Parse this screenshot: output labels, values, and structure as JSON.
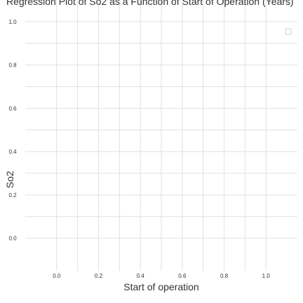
{
  "chart_data": {
    "type": "scatter",
    "title": "Regression Plot of So2 as a Function of Start of Operation (Years)",
    "xlabel": "Start of operation",
    "ylabel": "So2",
    "xlim": [
      -0.15,
      1.15
    ],
    "ylim": [
      -0.15,
      1.1
    ],
    "x_ticks": [
      0.0,
      0.2,
      0.4,
      0.6,
      0.8,
      1.0
    ],
    "x_tick_labels": [
      "0.0",
      "0.2",
      "0.4",
      "0.6",
      "0.8",
      "1.0"
    ],
    "y_ticks": [
      0.0,
      0.2,
      0.4,
      0.6,
      0.8,
      1.0
    ],
    "y_tick_labels": [
      "0.0",
      "0.2",
      "0.4",
      "0.6",
      "0.8",
      "1.0"
    ],
    "grid": true,
    "legend_placement": "top-right",
    "series": [
      {
        "x": [],
        "y": []
      }
    ],
    "colors": {
      "grid": "#e0e0e0",
      "text": "#333333",
      "legend_border": "#cccccc"
    }
  }
}
